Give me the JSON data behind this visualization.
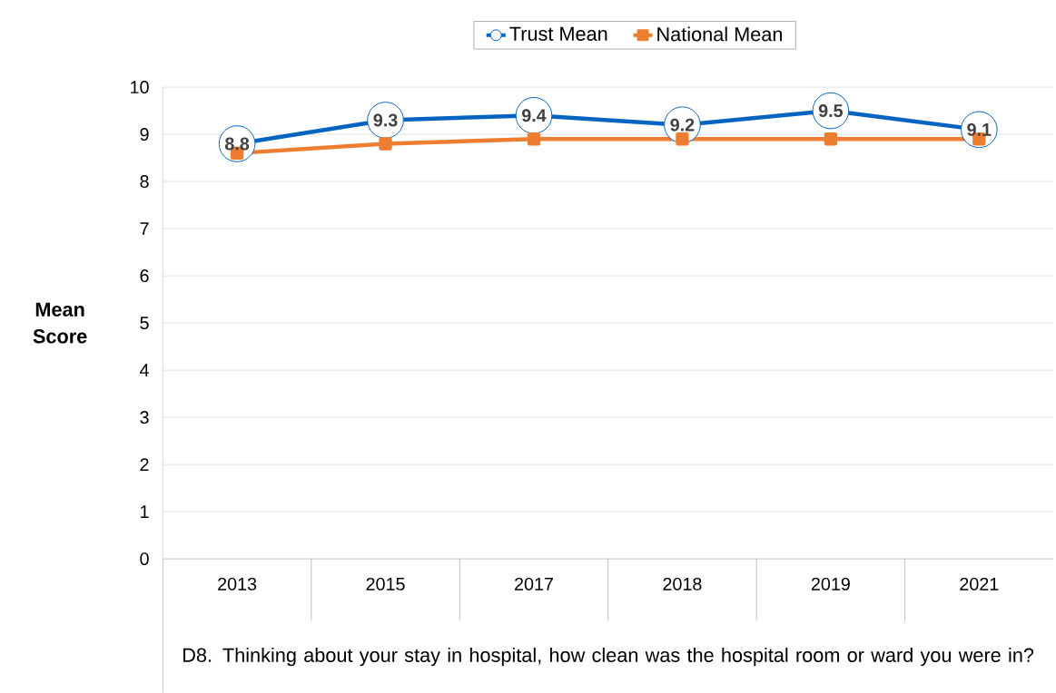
{
  "chart_data": {
    "type": "line",
    "xlabel": "D8. Thinking about your stay in hospital, how clean was the hospital room or ward you were in?",
    "ylabel": "Mean Score",
    "categories": [
      "2013",
      "2015",
      "2017",
      "2018",
      "2019",
      "2021"
    ],
    "series": [
      {
        "name": "Trust Mean",
        "color": "#0563c1",
        "marker": "circle",
        "values": [
          8.8,
          9.3,
          9.4,
          9.2,
          9.5,
          9.1
        ],
        "value_labels": [
          "8.8",
          "9.3",
          "9.4",
          "9.2",
          "9.5",
          "9.1"
        ]
      },
      {
        "name": "National Mean",
        "color": "#ed7d31",
        "marker": "square",
        "values": [
          8.6,
          8.8,
          8.9,
          8.9,
          8.9,
          8.9
        ]
      }
    ],
    "ylim": [
      0,
      10
    ],
    "yticks": [
      0,
      1,
      2,
      3,
      4,
      5,
      6,
      7,
      8,
      9,
      10
    ],
    "grid": "y",
    "legend": "top",
    "line_style": "solid"
  }
}
